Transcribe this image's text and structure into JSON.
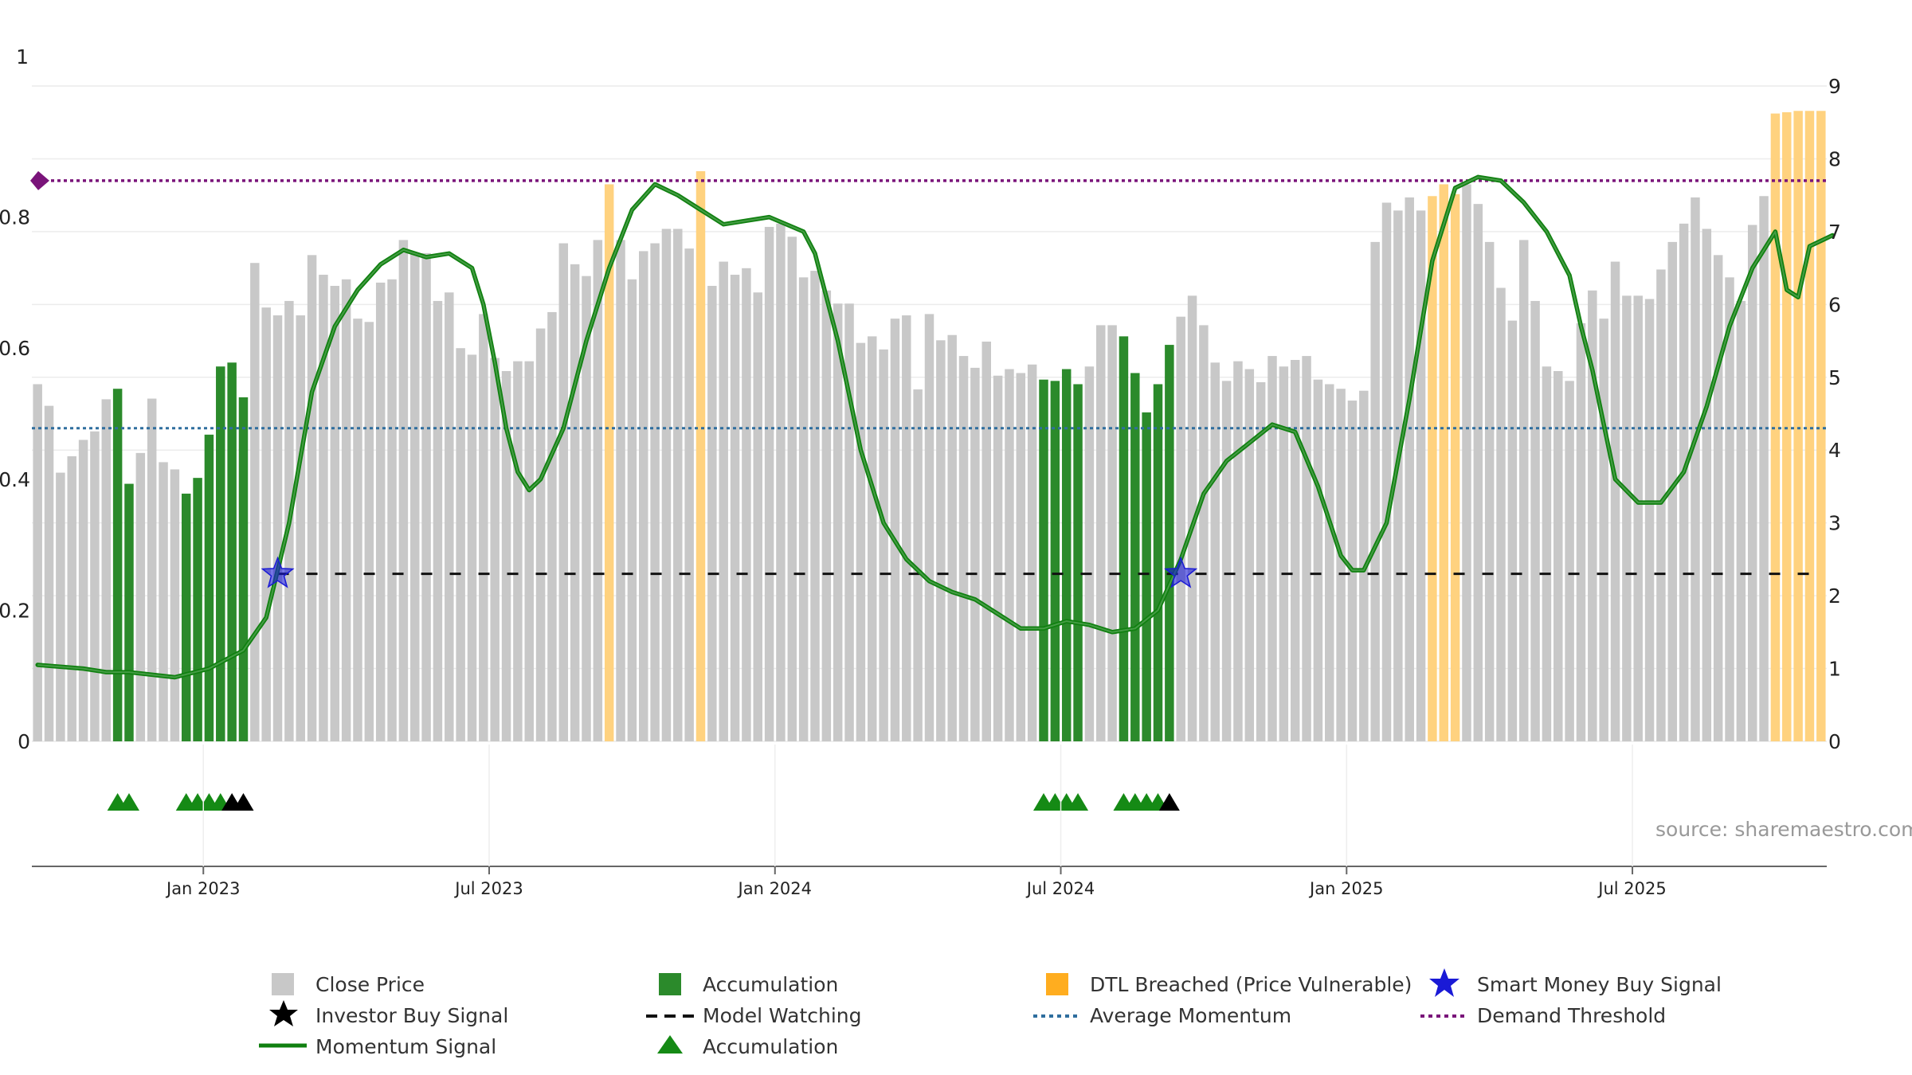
{
  "chart_data": {
    "type": "bar",
    "title": "",
    "source": "source: sharemaestro.com",
    "x_ticks": [
      "Jan 2023",
      "Jul 2023",
      "Jan 2024",
      "Jul 2024",
      "Jan 2025",
      "Jul 2025"
    ],
    "y_left": {
      "range": [
        0,
        1
      ],
      "ticks": [
        "0",
        "0.2",
        "0.4",
        "0.6",
        "0.8",
        "1"
      ]
    },
    "y_right": {
      "range": [
        0,
        9
      ],
      "ticks": [
        "0",
        "1",
        "2",
        "3",
        "4",
        "5",
        "6",
        "7",
        "8",
        "9"
      ]
    },
    "close_price": [
      0.545,
      0.512,
      0.41,
      0.435,
      0.46,
      0.473,
      0.522,
      0.538,
      0.393,
      0.44,
      0.523,
      0.426,
      0.415,
      0.378,
      0.402,
      0.468,
      0.572,
      0.578,
      0.525,
      0.73,
      0.662,
      0.65,
      0.672,
      0.65,
      0.742,
      0.712,
      0.695,
      0.705,
      0.645,
      0.64,
      0.7,
      0.705,
      0.765,
      0.745,
      0.745,
      0.672,
      0.685,
      0.6,
      0.59,
      0.652,
      0.585,
      0.565,
      0.58,
      0.58,
      0.63,
      0.655,
      0.76,
      0.728,
      0.71,
      0.765,
      0.85,
      0.765,
      0.705,
      0.748,
      0.76,
      0.782,
      0.782,
      0.752,
      0.87,
      0.695,
      0.732,
      0.712,
      0.722,
      0.685,
      0.785,
      0.79,
      0.77,
      0.708,
      0.718,
      0.688,
      0.668,
      0.668,
      0.608,
      0.618,
      0.598,
      0.645,
      0.65,
      0.537,
      0.652,
      0.612,
      0.62,
      0.588,
      0.57,
      0.61,
      0.558,
      0.568,
      0.562,
      0.575,
      0.552,
      0.55,
      0.568,
      0.545,
      0.572,
      0.635,
      0.635,
      0.618,
      0.562,
      0.502,
      0.545,
      0.605,
      0.648,
      0.68,
      0.635,
      0.578,
      0.55,
      0.58,
      0.568,
      0.548,
      0.588,
      0.572,
      0.582,
      0.588,
      0.552,
      0.545,
      0.538,
      0.52,
      0.535,
      0.762,
      0.822,
      0.81,
      0.83,
      0.81,
      0.832,
      0.85,
      0.835,
      0.85,
      0.82,
      0.762,
      0.692,
      0.642,
      0.765,
      0.672,
      0.572,
      0.565,
      0.55,
      0.638,
      0.688,
      0.645,
      0.732,
      0.68,
      0.68,
      0.675,
      0.72,
      0.762,
      0.79,
      0.83,
      0.782,
      0.742,
      0.708,
      0.672,
      0.788,
      0.832,
      0.958,
      0.96,
      0.962,
      0.962,
      0.962
    ],
    "accumulation_bar_indices": [
      7,
      8,
      13,
      14,
      15,
      16,
      17,
      18,
      88,
      89,
      90,
      91,
      95,
      96,
      97,
      98,
      99
    ],
    "dtl_breached_indices": [
      50,
      58,
      122,
      123,
      124,
      152,
      153,
      154,
      155,
      156
    ],
    "momentum_signal": [
      [
        0,
        1.05
      ],
      [
        4,
        1.0
      ],
      [
        6,
        0.95
      ],
      [
        8,
        0.95
      ],
      [
        12,
        0.88
      ],
      [
        15,
        1.0
      ],
      [
        18,
        1.25
      ],
      [
        20,
        1.7
      ],
      [
        22,
        3.0
      ],
      [
        24,
        4.8
      ],
      [
        26,
        5.7
      ],
      [
        28,
        6.2
      ],
      [
        30,
        6.55
      ],
      [
        32,
        6.75
      ],
      [
        34,
        6.65
      ],
      [
        36,
        6.7
      ],
      [
        38,
        6.5
      ],
      [
        39,
        6.0
      ],
      [
        40,
        5.2
      ],
      [
        41,
        4.3
      ],
      [
        42,
        3.7
      ],
      [
        43,
        3.45
      ],
      [
        44,
        3.6
      ],
      [
        46,
        4.3
      ],
      [
        48,
        5.5
      ],
      [
        50,
        6.5
      ],
      [
        52,
        7.3
      ],
      [
        54,
        7.65
      ],
      [
        56,
        7.5
      ],
      [
        58,
        7.3
      ],
      [
        60,
        7.1
      ],
      [
        64,
        7.2
      ],
      [
        67,
        7.0
      ],
      [
        68,
        6.7
      ],
      [
        70,
        5.5
      ],
      [
        72,
        4.0
      ],
      [
        74,
        3.0
      ],
      [
        76,
        2.5
      ],
      [
        78,
        2.2
      ],
      [
        80,
        2.05
      ],
      [
        82,
        1.95
      ],
      [
        84,
        1.75
      ],
      [
        86,
        1.55
      ],
      [
        88,
        1.55
      ],
      [
        90,
        1.65
      ],
      [
        92,
        1.6
      ],
      [
        94,
        1.5
      ],
      [
        96,
        1.55
      ],
      [
        98,
        1.8
      ],
      [
        100,
        2.5
      ],
      [
        102,
        3.4
      ],
      [
        104,
        3.85
      ],
      [
        106,
        4.1
      ],
      [
        108,
        4.35
      ],
      [
        110,
        4.25
      ],
      [
        112,
        3.5
      ],
      [
        114,
        2.55
      ],
      [
        115,
        2.35
      ],
      [
        116,
        2.35
      ],
      [
        118,
        3.0
      ],
      [
        120,
        4.7
      ],
      [
        122,
        6.6
      ],
      [
        124,
        7.6
      ],
      [
        126,
        7.75
      ],
      [
        128,
        7.7
      ],
      [
        130,
        7.4
      ],
      [
        132,
        7.0
      ],
      [
        134,
        6.4
      ],
      [
        135,
        5.7
      ],
      [
        136,
        5.1
      ],
      [
        138,
        3.6
      ],
      [
        140,
        3.28
      ],
      [
        142,
        3.28
      ],
      [
        144,
        3.7
      ],
      [
        146,
        4.6
      ],
      [
        148,
        5.7
      ],
      [
        150,
        6.5
      ],
      [
        151,
        6.75
      ],
      [
        152,
        7.0
      ],
      [
        153,
        6.2
      ],
      [
        154,
        6.1
      ],
      [
        155,
        6.8
      ],
      [
        157,
        6.95
      ]
    ],
    "series": [
      {
        "name": "Average Momentum",
        "value": 4.3
      },
      {
        "name": "Demand Threshold",
        "value": 7.7
      },
      {
        "name": "Model Watching",
        "value": 2.3
      }
    ],
    "smart_money_signals": [
      [
        21,
        2.3
      ],
      [
        100,
        2.3
      ]
    ],
    "accumulation_triangles": [
      7,
      8,
      13,
      14,
      15,
      16,
      88,
      89,
      90,
      91,
      95,
      96,
      97,
      98
    ],
    "investor_buy_triangles": [
      17,
      18,
      99
    ],
    "legend": [
      "Close Price",
      "Investor Buy Signal",
      "Momentum Signal",
      "Accumulation",
      "Model Watching",
      "Accumulation",
      "DTL Breached (Price Vulnerable)",
      "Average Momentum",
      "Smart Money Buy Signal",
      "Demand Threshold"
    ],
    "colors": {
      "close": "#c8c8c8",
      "accumulation": "#2b8a2b",
      "dtl": "#ffd27f",
      "momentum": "#108010",
      "average": "#2f6e9e",
      "threshold": "#7a147a",
      "watching": "#111111",
      "smart_money": "#1a1ad6",
      "tri_accum": "#158a15",
      "tri_buy": "#000000"
    }
  }
}
